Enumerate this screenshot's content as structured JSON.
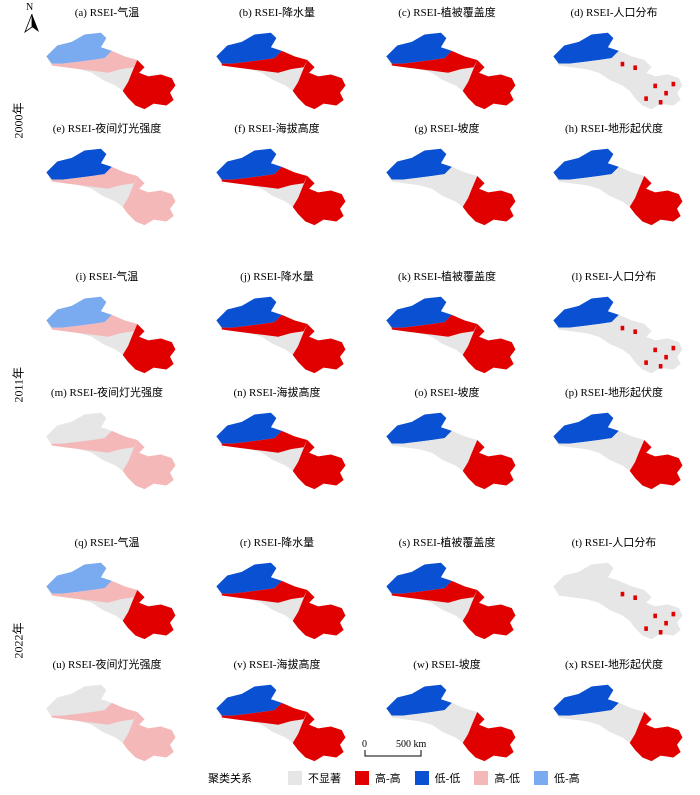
{
  "north_label": "N",
  "years": [
    "2000年",
    "2011年",
    "2022年"
  ],
  "scale_bar": {
    "zero": "0",
    "label": "500 km"
  },
  "legend": {
    "title": "聚类关系",
    "items": [
      {
        "label": "不显著",
        "color": "#e6e6e6"
      },
      {
        "label": "高-高",
        "color": "#e00000"
      },
      {
        "label": "低-低",
        "color": "#0a50d2"
      },
      {
        "label": "高-低",
        "color": "#f5b8b8"
      },
      {
        "label": "低-高",
        "color": "#7aaaf0"
      }
    ]
  },
  "panels": [
    {
      "id": "a",
      "title": "(a) RSEI-气温",
      "pattern": "temp"
    },
    {
      "id": "b",
      "title": "(b) RSEI-降水量",
      "pattern": "precip"
    },
    {
      "id": "c",
      "title": "(c) RSEI-植被覆盖度",
      "pattern": "precip"
    },
    {
      "id": "d",
      "title": "(d) RSEI-人口分布",
      "pattern": "pop"
    },
    {
      "id": "e",
      "title": "(e) RSEI-夜间灯光强度",
      "pattern": "light"
    },
    {
      "id": "f",
      "title": "(f) RSEI-海拔高度",
      "pattern": "elev"
    },
    {
      "id": "g",
      "title": "(g) RSEI-坡度",
      "pattern": "slope"
    },
    {
      "id": "h",
      "title": "(h) RSEI-地形起伏度",
      "pattern": "slope"
    },
    {
      "id": "i",
      "title": "(i) RSEI-气温",
      "pattern": "temp"
    },
    {
      "id": "j",
      "title": "(j) RSEI-降水量",
      "pattern": "precip"
    },
    {
      "id": "k",
      "title": "(k) RSEI-植被覆盖度",
      "pattern": "precip"
    },
    {
      "id": "l",
      "title": "(l) RSEI-人口分布",
      "pattern": "pop"
    },
    {
      "id": "m",
      "title": "(m) RSEI-夜间灯光强度",
      "pattern": "light2"
    },
    {
      "id": "n",
      "title": "(n) RSEI-海拔高度",
      "pattern": "elev"
    },
    {
      "id": "o",
      "title": "(o) RSEI-坡度",
      "pattern": "slope"
    },
    {
      "id": "p",
      "title": "(p) RSEI-地形起伏度",
      "pattern": "slope"
    },
    {
      "id": "q",
      "title": "(q) RSEI-气温",
      "pattern": "temp"
    },
    {
      "id": "r",
      "title": "(r) RSEI-降水量",
      "pattern": "precip"
    },
    {
      "id": "s",
      "title": "(s) RSEI-植被覆盖度",
      "pattern": "precip"
    },
    {
      "id": "t",
      "title": "(t) RSEI-人口分布",
      "pattern": "pop2"
    },
    {
      "id": "u",
      "title": "(u) RSEI-夜间灯光强度",
      "pattern": "light2"
    },
    {
      "id": "v",
      "title": "(v) RSEI-海拔高度",
      "pattern": "elev"
    },
    {
      "id": "w",
      "title": "(w) RSEI-坡度",
      "pattern": "slope"
    },
    {
      "id": "x",
      "title": "(x) RSEI-地形起伏度",
      "pattern": "slope"
    }
  ]
}
